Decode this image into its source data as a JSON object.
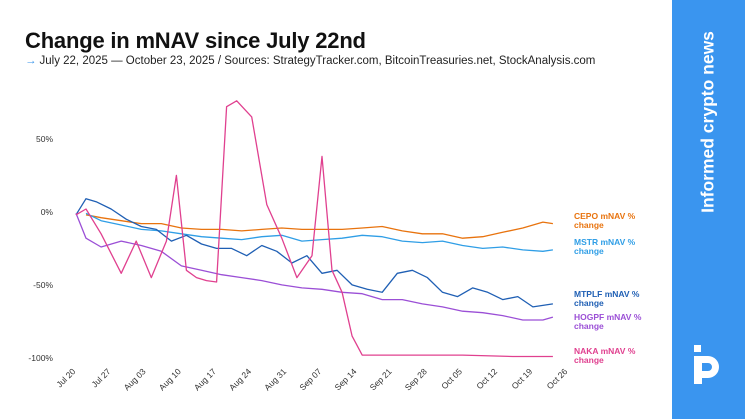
{
  "header": {
    "title": "Change in mNAV since July 22nd",
    "subtitle_arrow": "→",
    "subtitle": "July 22, 2025 — October 23, 2025 / Sources: StrategyTracker.com, BitcoinTreasuries.net, StockAnalysis.com"
  },
  "sidebar": {
    "tagline": "Informed crypto news",
    "logo_icon": "protos-logo-icon",
    "background": "#3a95ef"
  },
  "chart_data": {
    "type": "line",
    "title": "Change in mNAV since July 22nd",
    "xlabel": "",
    "ylabel": "",
    "ylim": [
      -100,
      80
    ],
    "yticks": [
      50,
      0,
      -50,
      -100
    ],
    "ytick_labels": [
      "50%",
      "0%",
      "-50%",
      "-100%"
    ],
    "xlim": [
      "2025-07-20",
      "2025-10-26"
    ],
    "xticks": [
      "2025-07-20",
      "2025-07-27",
      "2025-08-03",
      "2025-08-10",
      "2025-08-17",
      "2025-08-24",
      "2025-08-31",
      "2025-09-07",
      "2025-09-14",
      "2025-09-21",
      "2025-09-28",
      "2025-10-05",
      "2025-10-12",
      "2025-10-19",
      "2025-10-26"
    ],
    "xtick_labels": [
      "Jul 20",
      "Jul 27",
      "Aug 03",
      "Aug 10",
      "Aug 17",
      "Aug 24",
      "Aug 31",
      "Sep 07",
      "Sep 14",
      "Sep 21",
      "Sep 28",
      "Oct 05",
      "Oct 12",
      "Oct 19",
      "Oct 26"
    ],
    "grid": false,
    "legend_placement": "right-inline",
    "series": [
      {
        "name": "CEPO mNAV % change",
        "color": "#e8730e",
        "x": [
          "2025-07-22",
          "2025-07-25",
          "2025-07-29",
          "2025-08-02",
          "2025-08-06",
          "2025-08-10",
          "2025-08-14",
          "2025-08-18",
          "2025-08-22",
          "2025-08-26",
          "2025-08-30",
          "2025-09-03",
          "2025-09-07",
          "2025-09-11",
          "2025-09-15",
          "2025-09-19",
          "2025-09-23",
          "2025-09-27",
          "2025-10-01",
          "2025-10-05",
          "2025-10-09",
          "2025-10-13",
          "2025-10-17",
          "2025-10-21",
          "2025-10-23"
        ],
        "values": [
          -2,
          -4,
          -6,
          -8,
          -8,
          -11,
          -12,
          -12,
          -13,
          -12,
          -11,
          -12,
          -12,
          -12,
          -11,
          -10,
          -13,
          -15,
          -15,
          -18,
          -17,
          -14,
          -11,
          -7,
          -8
        ]
      },
      {
        "name": "MSTR mNAV % change",
        "color": "#2f9ee6",
        "x": [
          "2025-07-22",
          "2025-07-25",
          "2025-07-29",
          "2025-08-02",
          "2025-08-06",
          "2025-08-10",
          "2025-08-14",
          "2025-08-18",
          "2025-08-22",
          "2025-08-26",
          "2025-08-30",
          "2025-09-03",
          "2025-09-07",
          "2025-09-11",
          "2025-09-15",
          "2025-09-19",
          "2025-09-23",
          "2025-09-27",
          "2025-10-01",
          "2025-10-05",
          "2025-10-09",
          "2025-10-13",
          "2025-10-17",
          "2025-10-21",
          "2025-10-23"
        ],
        "values": [
          -1,
          -6,
          -9,
          -12,
          -13,
          -15,
          -17,
          -18,
          -19,
          -17,
          -16,
          -20,
          -19,
          -18,
          -16,
          -17,
          -20,
          -21,
          -20,
          -23,
          -25,
          -24,
          -26,
          -27,
          -26
        ]
      },
      {
        "name": "MTPLF mNAV % change",
        "color": "#1f5fb4",
        "x": [
          "2025-07-20",
          "2025-07-22",
          "2025-07-24",
          "2025-07-27",
          "2025-07-30",
          "2025-08-02",
          "2025-08-05",
          "2025-08-08",
          "2025-08-11",
          "2025-08-14",
          "2025-08-17",
          "2025-08-20",
          "2025-08-23",
          "2025-08-26",
          "2025-08-29",
          "2025-09-01",
          "2025-09-04",
          "2025-09-07",
          "2025-09-10",
          "2025-09-13",
          "2025-09-16",
          "2025-09-19",
          "2025-09-22",
          "2025-09-25",
          "2025-09-28",
          "2025-10-01",
          "2025-10-04",
          "2025-10-07",
          "2025-10-10",
          "2025-10-13",
          "2025-10-16",
          "2025-10-19",
          "2025-10-23"
        ],
        "values": [
          -2,
          9,
          7,
          2,
          -5,
          -10,
          -12,
          -20,
          -16,
          -22,
          -25,
          -25,
          -30,
          -23,
          -27,
          -35,
          -30,
          -42,
          -40,
          -50,
          -53,
          -55,
          -42,
          -40,
          -45,
          -55,
          -58,
          -52,
          -55,
          -60,
          -58,
          -65,
          -63
        ]
      },
      {
        "name": "HOGPF mNAV % change",
        "color": "#9b4fd6",
        "x": [
          "2025-07-20",
          "2025-07-22",
          "2025-07-25",
          "2025-07-29",
          "2025-08-02",
          "2025-08-06",
          "2025-08-10",
          "2025-08-14",
          "2025-08-18",
          "2025-08-22",
          "2025-08-26",
          "2025-08-30",
          "2025-09-03",
          "2025-09-07",
          "2025-09-11",
          "2025-09-15",
          "2025-09-19",
          "2025-09-23",
          "2025-09-27",
          "2025-10-01",
          "2025-10-05",
          "2025-10-09",
          "2025-10-13",
          "2025-10-17",
          "2025-10-21",
          "2025-10-23"
        ],
        "values": [
          -1,
          -18,
          -24,
          -20,
          -23,
          -27,
          -37,
          -40,
          -43,
          -45,
          -47,
          -50,
          -52,
          -53,
          -55,
          -56,
          -60,
          -60,
          -63,
          -65,
          -68,
          -69,
          -71,
          -74,
          -74,
          -72
        ]
      },
      {
        "name": "NAKA mNAV % change",
        "color": "#e0408f",
        "x": [
          "2025-07-20",
          "2025-07-22",
          "2025-07-25",
          "2025-07-29",
          "2025-08-01",
          "2025-08-04",
          "2025-08-07",
          "2025-08-09",
          "2025-08-11",
          "2025-08-13",
          "2025-08-15",
          "2025-08-17",
          "2025-08-19",
          "2025-08-21",
          "2025-08-24",
          "2025-08-27",
          "2025-08-30",
          "2025-09-02",
          "2025-09-05",
          "2025-09-07",
          "2025-09-09",
          "2025-09-11",
          "2025-09-13",
          "2025-09-15",
          "2025-09-18",
          "2025-09-25",
          "2025-10-05",
          "2025-10-15",
          "2025-10-23"
        ],
        "values": [
          -2,
          2,
          -15,
          -42,
          -20,
          -45,
          -20,
          25,
          -40,
          -45,
          -47,
          -48,
          72,
          76,
          65,
          5,
          -18,
          -45,
          -30,
          38,
          -40,
          -55,
          -85,
          -98,
          -98,
          -98,
          -98,
          -99,
          -99
        ]
      }
    ],
    "legend_labels": [
      {
        "series": "CEPO mNAV % change",
        "line1": "CEPO mNAV %",
        "line2": "change"
      },
      {
        "series": "MSTR mNAV % change",
        "line1": "MSTR mNAV %",
        "line2": "change"
      },
      {
        "series": "MTPLF mNAV % change",
        "line1": "MTPLF mNAV %",
        "line2": "change"
      },
      {
        "series": "HOGPF mNAV % change",
        "line1": "HOGPF mNAV %",
        "line2": "change"
      },
      {
        "series": "NAKA mNAV % change",
        "line1": "NAKA mNAV %",
        "line2": "change"
      }
    ]
  }
}
